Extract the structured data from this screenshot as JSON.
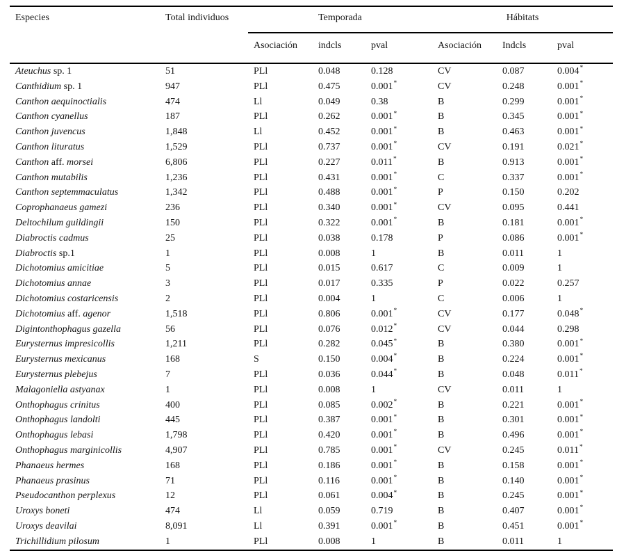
{
  "table": {
    "header": {
      "especies": "Especies",
      "total_individuos": "Total individuos",
      "temporada_group": "Temporada",
      "habitats_group": "Hábitats",
      "temporada_asociacion": "Asociación",
      "temporada_indcls": "indcls",
      "temporada_pval": "pval",
      "habitats_asociacion": "Asociación",
      "habitats_indcls": "Indcls",
      "habitats_pval": "pval"
    },
    "significance_marker": "*",
    "rows": [
      {
        "species": [
          [
            "Ateuchus",
            true
          ],
          [
            " sp. 1",
            false
          ]
        ],
        "total": "51",
        "temporada": {
          "asociacion": "PLl",
          "indcls": "0.048",
          "pval": "0.128",
          "sig": false
        },
        "habitats": {
          "asociacion": "CV",
          "indcls": "0.087",
          "pval": "0.004",
          "sig": true
        }
      },
      {
        "species": [
          [
            "Canthidium",
            true
          ],
          [
            " sp. 1",
            false
          ]
        ],
        "total": "947",
        "temporada": {
          "asociacion": "PLl",
          "indcls": "0.475",
          "pval": "0.001",
          "sig": true
        },
        "habitats": {
          "asociacion": "CV",
          "indcls": "0.248",
          "pval": "0.001",
          "sig": true
        }
      },
      {
        "species": [
          [
            "Canthon aequinoctialis",
            true
          ]
        ],
        "total": "474",
        "temporada": {
          "asociacion": "Ll",
          "indcls": "0.049",
          "pval": "0.38",
          "sig": false
        },
        "habitats": {
          "asociacion": "B",
          "indcls": "0.299",
          "pval": "0.001",
          "sig": true
        }
      },
      {
        "species": [
          [
            "Canthon cyanellus",
            true
          ]
        ],
        "total": "187",
        "temporada": {
          "asociacion": "PLl",
          "indcls": "0.262",
          "pval": "0.001",
          "sig": true
        },
        "habitats": {
          "asociacion": "B",
          "indcls": "0.345",
          "pval": "0.001",
          "sig": true
        }
      },
      {
        "species": [
          [
            "Canthon juvencus",
            true
          ]
        ],
        "total": "1,848",
        "temporada": {
          "asociacion": "Ll",
          "indcls": "0.452",
          "pval": "0.001",
          "sig": true
        },
        "habitats": {
          "asociacion": "B",
          "indcls": "0.463",
          "pval": "0.001",
          "sig": true
        }
      },
      {
        "species": [
          [
            "Canthon lituratus",
            true
          ]
        ],
        "total": "1,529",
        "temporada": {
          "asociacion": "PLl",
          "indcls": "0.737",
          "pval": "0.001",
          "sig": true
        },
        "habitats": {
          "asociacion": "CV",
          "indcls": "0.191",
          "pval": "0.021",
          "sig": true
        }
      },
      {
        "species": [
          [
            "Canthon",
            true
          ],
          [
            " aff. ",
            false
          ],
          [
            "morsei",
            true
          ]
        ],
        "total": "6,806",
        "temporada": {
          "asociacion": "PLl",
          "indcls": "0.227",
          "pval": "0.011",
          "sig": true
        },
        "habitats": {
          "asociacion": "B",
          "indcls": "0.913",
          "pval": "0.001",
          "sig": true
        }
      },
      {
        "species": [
          [
            "Canthon mutabilis",
            true
          ]
        ],
        "total": "1,236",
        "temporada": {
          "asociacion": "PLl",
          "indcls": "0.431",
          "pval": "0.001",
          "sig": true
        },
        "habitats": {
          "asociacion": "C",
          "indcls": "0.337",
          "pval": "0.001",
          "sig": true
        }
      },
      {
        "species": [
          [
            "Canthon septemmaculatus",
            true
          ]
        ],
        "total": "1,342",
        "temporada": {
          "asociacion": "PLl",
          "indcls": "0.488",
          "pval": "0.001",
          "sig": true
        },
        "habitats": {
          "asociacion": "P",
          "indcls": "0.150",
          "pval": "0.202",
          "sig": false
        }
      },
      {
        "species": [
          [
            "Coprophanaeus gamezi",
            true
          ]
        ],
        "total": "236",
        "temporada": {
          "asociacion": "PLl",
          "indcls": "0.340",
          "pval": "0.001",
          "sig": true
        },
        "habitats": {
          "asociacion": "CV",
          "indcls": "0.095",
          "pval": "0.441",
          "sig": false
        }
      },
      {
        "species": [
          [
            "Deltochilum guildingii",
            true
          ]
        ],
        "total": "150",
        "temporada": {
          "asociacion": "PLl",
          "indcls": "0.322",
          "pval": "0.001",
          "sig": true
        },
        "habitats": {
          "asociacion": "B",
          "indcls": "0.181",
          "pval": "0.001",
          "sig": true
        }
      },
      {
        "species": [
          [
            "Diabroctis cadmus",
            true
          ]
        ],
        "total": "25",
        "temporada": {
          "asociacion": "PLl",
          "indcls": "0.038",
          "pval": "0.178",
          "sig": false
        },
        "habitats": {
          "asociacion": "P",
          "indcls": "0.086",
          "pval": "0.001",
          "sig": true
        }
      },
      {
        "species": [
          [
            "Diabroctis",
            true
          ],
          [
            " sp.1",
            false
          ]
        ],
        "total": "1",
        "temporada": {
          "asociacion": "PLl",
          "indcls": "0.008",
          "pval": "1",
          "sig": false
        },
        "habitats": {
          "asociacion": "B",
          "indcls": "0.011",
          "pval": "1",
          "sig": false
        }
      },
      {
        "species": [
          [
            "Dichotomius amicitiae",
            true
          ]
        ],
        "total": "5",
        "temporada": {
          "asociacion": "PLl",
          "indcls": "0.015",
          "pval": "0.617",
          "sig": false
        },
        "habitats": {
          "asociacion": "C",
          "indcls": "0.009",
          "pval": "1",
          "sig": false
        }
      },
      {
        "species": [
          [
            "Dichotomius annae",
            true
          ]
        ],
        "total": "3",
        "temporada": {
          "asociacion": "PLl",
          "indcls": "0.017",
          "pval": "0.335",
          "sig": false
        },
        "habitats": {
          "asociacion": "P",
          "indcls": "0.022",
          "pval": "0.257",
          "sig": false
        }
      },
      {
        "species": [
          [
            "Dichotomius costaricensis",
            true
          ]
        ],
        "total": "2",
        "temporada": {
          "asociacion": "PLl",
          "indcls": "0.004",
          "pval": "1",
          "sig": false
        },
        "habitats": {
          "asociacion": "C",
          "indcls": "0.006",
          "pval": "1",
          "sig": false
        }
      },
      {
        "species": [
          [
            "Dichotomius",
            true
          ],
          [
            " aff. ",
            false
          ],
          [
            "agenor",
            true
          ]
        ],
        "total": "1,518",
        "temporada": {
          "asociacion": "PLl",
          "indcls": "0.806",
          "pval": "0.001",
          "sig": true
        },
        "habitats": {
          "asociacion": "CV",
          "indcls": "0.177",
          "pval": "0.048",
          "sig": true
        }
      },
      {
        "species": [
          [
            "Digintonthophagus gazella",
            true
          ]
        ],
        "total": "56",
        "temporada": {
          "asociacion": "PLl",
          "indcls": "0.076",
          "pval": "0.012",
          "sig": true
        },
        "habitats": {
          "asociacion": "CV",
          "indcls": "0.044",
          "pval": "0.298",
          "sig": false
        }
      },
      {
        "species": [
          [
            "Eurysternus impresicollis",
            true
          ]
        ],
        "total": "1,211",
        "temporada": {
          "asociacion": "PLl",
          "indcls": "0.282",
          "pval": "0.045",
          "sig": true
        },
        "habitats": {
          "asociacion": "B",
          "indcls": "0.380",
          "pval": "0.001",
          "sig": true
        }
      },
      {
        "species": [
          [
            "Eurysternus mexicanus",
            true
          ]
        ],
        "total": "168",
        "temporada": {
          "asociacion": "S",
          "indcls": "0.150",
          "pval": "0.004",
          "sig": true
        },
        "habitats": {
          "asociacion": "B",
          "indcls": "0.224",
          "pval": "0.001",
          "sig": true
        }
      },
      {
        "species": [
          [
            "Eurysternus plebejus",
            true
          ]
        ],
        "total": "7",
        "temporada": {
          "asociacion": "PLl",
          "indcls": "0.036",
          "pval": "0.044",
          "sig": true
        },
        "habitats": {
          "asociacion": "B",
          "indcls": "0.048",
          "pval": "0.011",
          "sig": true
        }
      },
      {
        "species": [
          [
            "Malagoniella astyanax",
            true
          ]
        ],
        "total": "1",
        "temporada": {
          "asociacion": "PLl",
          "indcls": "0.008",
          "pval": "1",
          "sig": false
        },
        "habitats": {
          "asociacion": "CV",
          "indcls": "0.011",
          "pval": "1",
          "sig": false
        }
      },
      {
        "species": [
          [
            "Onthophagus crinitus",
            true
          ]
        ],
        "total": "400",
        "temporada": {
          "asociacion": "PLl",
          "indcls": "0.085",
          "pval": "0.002",
          "sig": true
        },
        "habitats": {
          "asociacion": "B",
          "indcls": "0.221",
          "pval": "0.001",
          "sig": true
        }
      },
      {
        "species": [
          [
            "Onthophagus landolti",
            true
          ]
        ],
        "total": "445",
        "temporada": {
          "asociacion": "PLl",
          "indcls": "0.387",
          "pval": "0.001",
          "sig": true
        },
        "habitats": {
          "asociacion": "B",
          "indcls": "0.301",
          "pval": "0.001",
          "sig": true
        }
      },
      {
        "species": [
          [
            "Onthophagus lebasi",
            true
          ]
        ],
        "total": "1,798",
        "temporada": {
          "asociacion": "PLl",
          "indcls": "0.420",
          "pval": "0.001",
          "sig": true
        },
        "habitats": {
          "asociacion": "B",
          "indcls": "0.496",
          "pval": "0.001",
          "sig": true
        }
      },
      {
        "species": [
          [
            "Onthophagus marginicollis",
            true
          ]
        ],
        "total": "4,907",
        "temporada": {
          "asociacion": "PLl",
          "indcls": "0.785",
          "pval": "0.001",
          "sig": true
        },
        "habitats": {
          "asociacion": "CV",
          "indcls": "0.245",
          "pval": "0.011",
          "sig": true
        }
      },
      {
        "species": [
          [
            "Phanaeus hermes",
            true
          ]
        ],
        "total": "168",
        "temporada": {
          "asociacion": "PLl",
          "indcls": "0.186",
          "pval": "0.001",
          "sig": true
        },
        "habitats": {
          "asociacion": "B",
          "indcls": "0.158",
          "pval": "0.001",
          "sig": true
        }
      },
      {
        "species": [
          [
            "Phanaeus prasinus",
            true
          ]
        ],
        "total": "71",
        "temporada": {
          "asociacion": "PLl",
          "indcls": "0.116",
          "pval": "0.001",
          "sig": true
        },
        "habitats": {
          "asociacion": "B",
          "indcls": "0.140",
          "pval": "0.001",
          "sig": true
        }
      },
      {
        "species": [
          [
            "Pseudocanthon perplexus",
            true
          ]
        ],
        "total": "12",
        "temporada": {
          "asociacion": "PLl",
          "indcls": "0.061",
          "pval": "0.004",
          "sig": true
        },
        "habitats": {
          "asociacion": "B",
          "indcls": "0.245",
          "pval": "0.001",
          "sig": true
        }
      },
      {
        "species": [
          [
            "Uroxys boneti",
            true
          ]
        ],
        "total": "474",
        "temporada": {
          "asociacion": "Ll",
          "indcls": "0.059",
          "pval": "0.719",
          "sig": false
        },
        "habitats": {
          "asociacion": "B",
          "indcls": "0.407",
          "pval": "0.001",
          "sig": true
        }
      },
      {
        "species": [
          [
            "Uroxys deavilai",
            true
          ]
        ],
        "total": "8,091",
        "temporada": {
          "asociacion": "Ll",
          "indcls": "0.391",
          "pval": "0.001",
          "sig": true
        },
        "habitats": {
          "asociacion": "B",
          "indcls": "0.451",
          "pval": "0.001",
          "sig": true
        }
      },
      {
        "species": [
          [
            "Trichillidium pilosum",
            true
          ]
        ],
        "total": "1",
        "temporada": {
          "asociacion": "PLl",
          "indcls": "0.008",
          "pval": "1",
          "sig": false
        },
        "habitats": {
          "asociacion": "B",
          "indcls": "0.011",
          "pval": "1",
          "sig": false
        }
      }
    ]
  }
}
